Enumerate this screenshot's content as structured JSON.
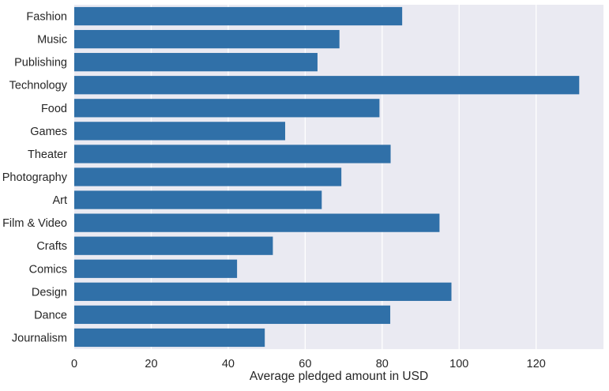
{
  "chart_data": {
    "type": "bar",
    "orientation": "horizontal",
    "categories": [
      "Fashion",
      "Music",
      "Publishing",
      "Technology",
      "Food",
      "Games",
      "Theater",
      "Photography",
      "Art",
      "Film & Video",
      "Crafts",
      "Comics",
      "Design",
      "Dance",
      "Journalism"
    ],
    "values": [
      85.2,
      68.9,
      63.2,
      131.2,
      79.3,
      54.8,
      82.2,
      69.4,
      64.3,
      94.9,
      51.6,
      42.3,
      98.0,
      82.1,
      49.5
    ],
    "xlabel": "Average pledged amount in USD",
    "ylabel": "",
    "xlim": [
      0,
      137.5
    ],
    "x_ticks": [
      0,
      20,
      40,
      60,
      80,
      100,
      120
    ],
    "x_tick_labels": [
      "0",
      "20",
      "40",
      "60",
      "80",
      "100",
      "120"
    ],
    "grid": true,
    "colors": {
      "bar": "#3070a8",
      "plot_background": "#eaeaf2",
      "grid": "#ffffff",
      "text": "#262626"
    }
  }
}
